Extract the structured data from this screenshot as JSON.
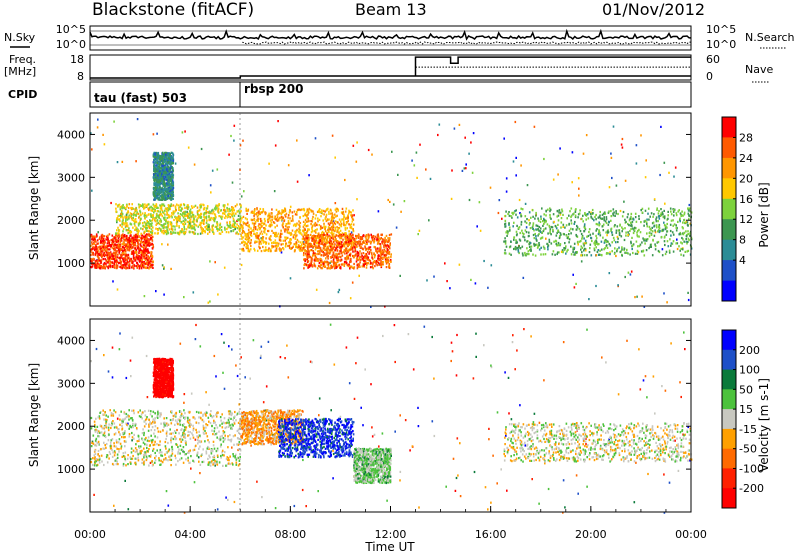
{
  "header": {
    "station": "Blackstone (fitACF)",
    "beam": "Beam 13",
    "date": "01/Nov/2012"
  },
  "top_panels": {
    "nsky_label": "N.Sky",
    "nsearch_label": "N.Search",
    "nsky_ticks": [
      "10^5",
      "10^0"
    ],
    "nsearch_ticks": [
      "10^5",
      "10^0"
    ],
    "freq_label": "Freq.",
    "freq_unit": "[MHz]",
    "freq_ticks": [
      "18",
      "8"
    ],
    "nave_label": "Nave",
    "nave_ticks": [
      "60",
      "0"
    ],
    "cpid_label": "CPID",
    "cpid_segments": [
      "tau (fast) 503",
      "rbsp 200"
    ]
  },
  "x_axis": {
    "label": "Time UT",
    "ticks": [
      "00:00",
      "04:00",
      "08:00",
      "12:00",
      "16:00",
      "20:00",
      "00:00"
    ]
  },
  "power_colorbar": {
    "label": "Power [dB]",
    "ticks": [
      "28",
      "24",
      "20",
      "16",
      "12",
      "8",
      "4"
    ],
    "colors": [
      "#ff0000",
      "#ff5a00",
      "#ff9600",
      "#ffc800",
      "#7dd23c",
      "#3c9650",
      "#2b8c96",
      "#1e50c8",
      "#0000ff"
    ]
  },
  "velocity_colorbar": {
    "label": "Velocity [m s-1]",
    "ticks": [
      "200",
      "100",
      "50",
      "15",
      "-15",
      "-50",
      "-100",
      "-200"
    ],
    "colors": [
      "#0000ff",
      "#1e50c8",
      "#0a7a3a",
      "#4cc23c",
      "#c8c8c0",
      "#ffa000",
      "#ff6a00",
      "#ff2000",
      "#ff0000"
    ]
  },
  "chart_data": [
    {
      "type": "heatmap",
      "title": "Power",
      "xlabel": "Time UT",
      "ylabel": "Slant Range [km]",
      "xlim": [
        0,
        24
      ],
      "ylim": [
        0,
        4500
      ],
      "y_ticks": [
        1000,
        2000,
        3000,
        4000
      ],
      "x_tick_hours": [
        0,
        4,
        8,
        12,
        16,
        20,
        24
      ],
      "colorbar_label": "Power [dB]",
      "colorbar_range": [
        0,
        32
      ],
      "echo_bands": [
        {
          "t0": 0.0,
          "t1": 2.5,
          "r0": 900,
          "r1": 1700,
          "power": 28
        },
        {
          "t0": 1.0,
          "t1": 6.0,
          "r0": 1700,
          "r1": 2400,
          "power": 18
        },
        {
          "t0": 2.5,
          "t1": 3.3,
          "r0": 2500,
          "r1": 3600,
          "power": 10
        },
        {
          "t0": 6.0,
          "t1": 10.5,
          "r0": 1300,
          "r1": 2300,
          "power": 22
        },
        {
          "t0": 8.5,
          "t1": 12.0,
          "r0": 900,
          "r1": 1700,
          "power": 26
        },
        {
          "t0": 16.5,
          "t1": 24.0,
          "r0": 1200,
          "r1": 2300,
          "power": 14
        }
      ]
    },
    {
      "type": "heatmap",
      "title": "Velocity",
      "xlabel": "Time UT",
      "ylabel": "Slant Range [km]",
      "xlim": [
        0,
        24
      ],
      "ylim": [
        0,
        4500
      ],
      "y_ticks": [
        1000,
        2000,
        3000,
        4000
      ],
      "x_tick_hours": [
        0,
        4,
        8,
        12,
        16,
        20,
        24
      ],
      "colorbar_label": "Velocity [m s-1]",
      "colorbar_range": [
        -200,
        200
      ],
      "echo_bands": [
        {
          "t0": 0.0,
          "t1": 6.0,
          "r0": 1100,
          "r1": 2400,
          "velocity": 0
        },
        {
          "t0": 2.5,
          "t1": 3.3,
          "r0": 2700,
          "r1": 3600,
          "velocity": -200
        },
        {
          "t0": 6.0,
          "t1": 8.5,
          "r0": 1600,
          "r1": 2400,
          "velocity": -50
        },
        {
          "t0": 7.5,
          "t1": 10.5,
          "r0": 1300,
          "r1": 2200,
          "velocity": 150
        },
        {
          "t0": 10.5,
          "t1": 12.0,
          "r0": 700,
          "r1": 1500,
          "velocity": 30
        },
        {
          "t0": 16.5,
          "t1": 24.0,
          "r0": 1200,
          "r1": 2100,
          "velocity": 0
        }
      ]
    }
  ]
}
